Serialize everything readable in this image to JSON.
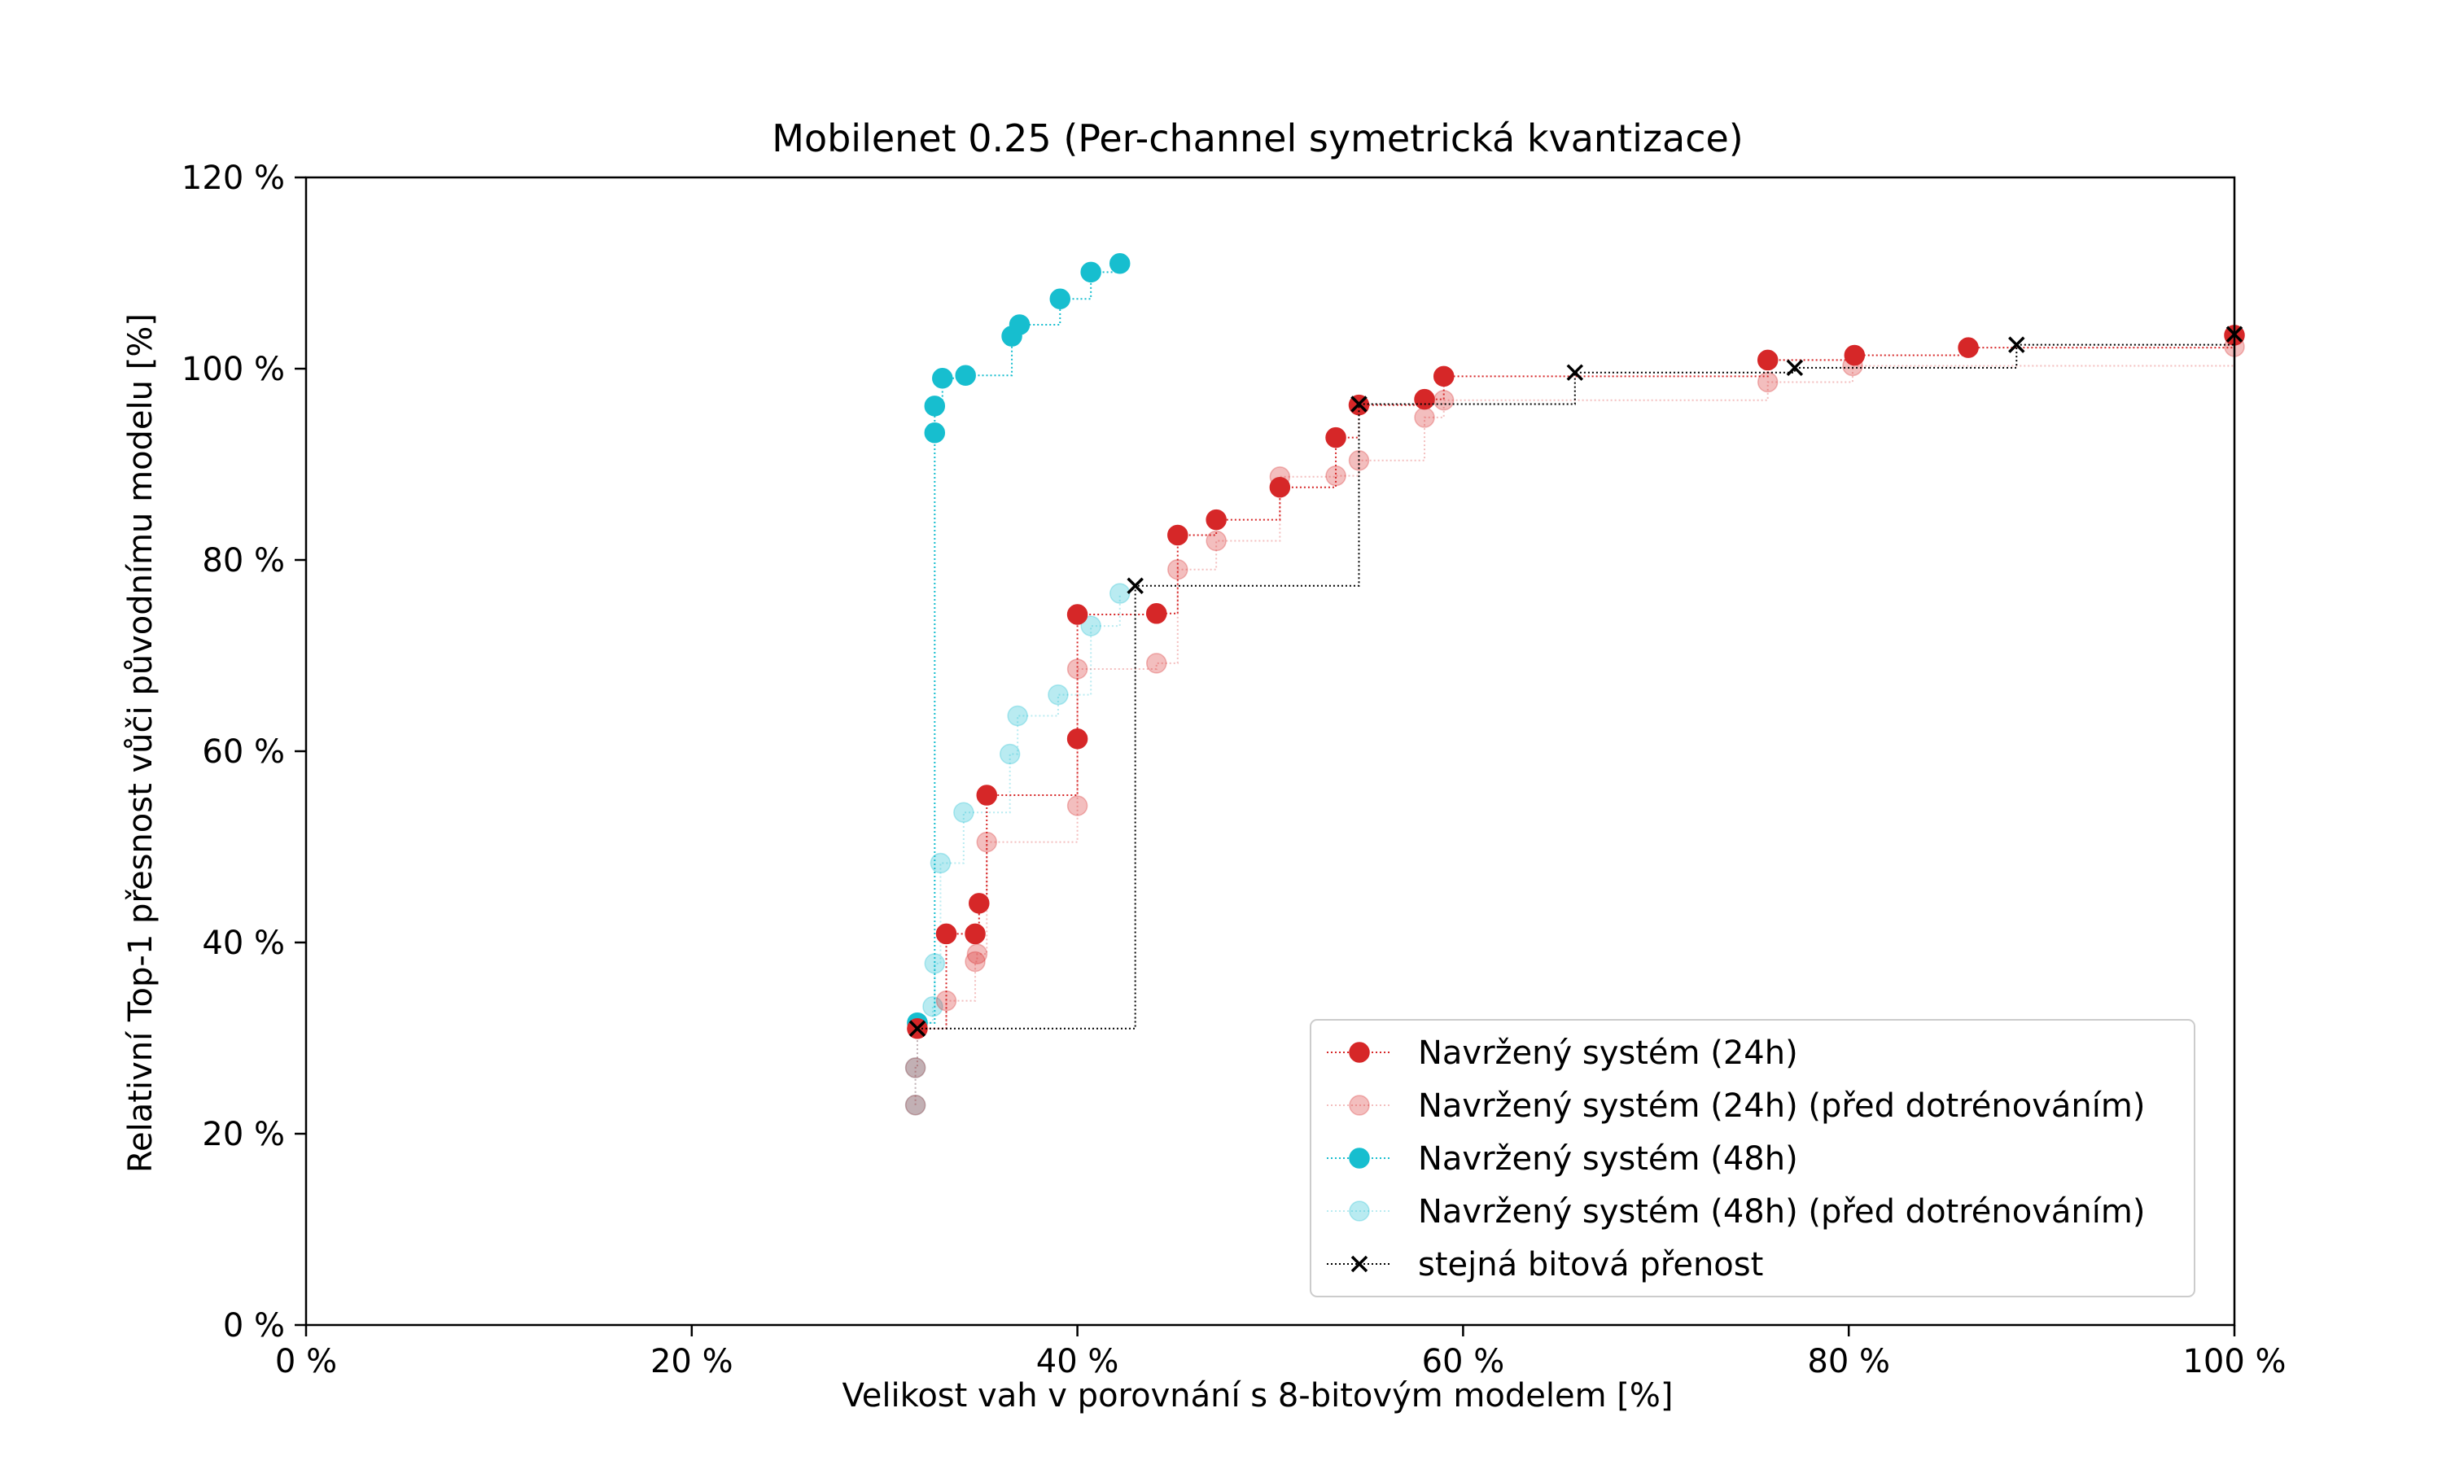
{
  "chart_data": {
    "type": "scatter",
    "title": "Mobilenet 0.25 (Per-channel symetrická kvantizace)",
    "xlabel": "Velikost vah v porovnání s 8-bitovým modelem [%]",
    "ylabel": "Relativní Top-1 přesnost vůči původnímu modelu [%]",
    "xlim": [
      0,
      100
    ],
    "ylim": [
      0,
      120
    ],
    "xticks": [
      "0 %",
      "20 %",
      "40 %",
      "60 %",
      "80 %",
      "100 %"
    ],
    "yticks": [
      "0 %",
      "20 %",
      "40 %",
      "60 %",
      "80 %",
      "100 %",
      "120 %"
    ],
    "xtick_values": [
      0,
      20,
      40,
      60,
      80,
      100
    ],
    "ytick_values": [
      0,
      20,
      40,
      60,
      80,
      100,
      120
    ],
    "grid": false,
    "legend_position": "bottom-right",
    "series": [
      {
        "name": "Navržený systém (48h) (před dotrénováním)",
        "color": "#17becf",
        "alpha": 0.3,
        "marker": "circle",
        "x": [
          31.6,
          31.6,
          31.7,
          32.5,
          32.6,
          32.9,
          34.1,
          36.5,
          36.9,
          39.0,
          40.7,
          42.2
        ],
        "y": [
          23.0,
          26.9,
          31.6,
          33.3,
          37.8,
          48.3,
          53.6,
          59.7,
          63.7,
          65.9,
          73.1,
          76.5
        ]
      },
      {
        "name": "Navržený systém (24h) (před dotrénováním)",
        "color": "#d62728",
        "alpha": 0.3,
        "marker": "circle",
        "x": [
          31.6,
          31.6,
          31.7,
          33.2,
          34.7,
          34.8,
          35.3,
          40.0,
          40.0,
          44.1,
          45.2,
          47.2,
          50.5,
          53.4,
          54.6,
          58.0,
          59.0,
          75.8,
          80.2,
          100.0
        ],
        "y": [
          23.0,
          26.9,
          31.0,
          33.9,
          38.0,
          38.8,
          50.5,
          54.3,
          68.6,
          69.2,
          79.0,
          82.0,
          88.7,
          88.8,
          90.4,
          94.9,
          96.7,
          98.6,
          100.3,
          102.3
        ]
      },
      {
        "name": "Navržený systém (48h)",
        "color": "#17becf",
        "alpha": 1.0,
        "marker": "circle",
        "x": [
          31.7,
          32.6,
          32.6,
          33.0,
          34.2,
          36.6,
          37.0,
          39.1,
          40.7,
          42.2
        ],
        "y": [
          31.6,
          93.3,
          96.1,
          99.0,
          99.3,
          103.4,
          104.6,
          107.3,
          110.1,
          111.0
        ]
      },
      {
        "name": "Navržený systém (24h)",
        "color": "#d62728",
        "alpha": 1.0,
        "marker": "circle",
        "x": [
          31.7,
          33.2,
          34.7,
          34.9,
          35.3,
          40.0,
          40.0,
          44.1,
          45.2,
          47.2,
          50.5,
          53.4,
          54.6,
          58.0,
          59.0,
          75.8,
          80.3,
          86.2,
          100.0
        ],
        "y": [
          31.0,
          40.9,
          40.9,
          44.1,
          55.4,
          61.3,
          74.3,
          74.4,
          82.6,
          84.2,
          87.6,
          92.8,
          96.2,
          96.8,
          99.2,
          100.9,
          101.4,
          102.2,
          103.5
        ]
      },
      {
        "name": "stejná bitová přenost",
        "color": "#000000",
        "alpha": 1.0,
        "marker": "x",
        "x": [
          31.7,
          43.0,
          54.6,
          65.8,
          77.2,
          88.7,
          100.0
        ],
        "y": [
          31.0,
          77.3,
          96.3,
          99.6,
          100.1,
          102.5,
          103.6
        ]
      }
    ],
    "legend_order": [
      3,
      1,
      2,
      0,
      4
    ]
  }
}
